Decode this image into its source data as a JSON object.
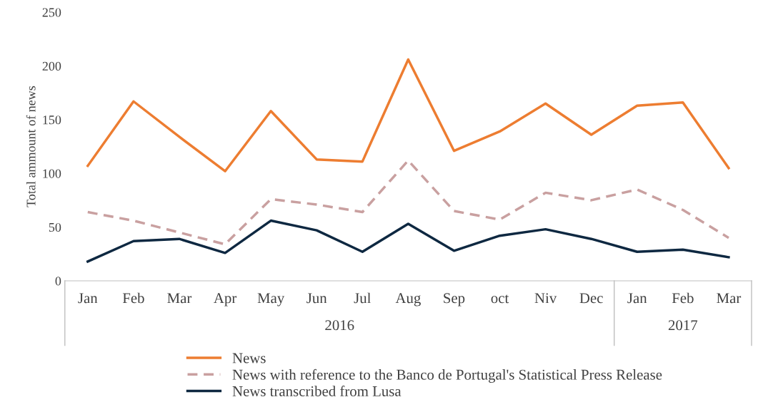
{
  "chart_data": {
    "type": "line",
    "ylabel": "Total ammount of news",
    "categories": [
      "Jan",
      "Feb",
      "Mar",
      "Apr",
      "May",
      "Jun",
      "Jul",
      "Aug",
      "Sep",
      "oct",
      "Niv",
      "Dec",
      "Jan",
      "Feb",
      "Mar"
    ],
    "series": [
      {
        "name": "News",
        "color": "#ed7d31",
        "line_style": "solid",
        "values": [
          107,
          167,
          134,
          102,
          158,
          113,
          111,
          206,
          121,
          139,
          165,
          136,
          163,
          166,
          105
        ]
      },
      {
        "name": "News with reference to the Banco de Portugal's Statistical Press Release",
        "color": "#c9a0a0",
        "line_style": "dashed",
        "values": [
          64,
          56,
          45,
          34,
          76,
          71,
          64,
          112,
          65,
          57,
          82,
          75,
          85,
          66,
          40
        ]
      },
      {
        "name": "News transcribed from Lusa",
        "color": "#0e2841",
        "line_style": "solid",
        "values": [
          18,
          37,
          39,
          26,
          56,
          47,
          27,
          53,
          28,
          42,
          48,
          39,
          27,
          29,
          22
        ]
      }
    ],
    "ylim": [
      0,
      250
    ],
    "yticks": [
      0,
      50,
      100,
      150,
      200,
      250
    ],
    "grid": false,
    "legend": "bottom",
    "marker": "none",
    "annotations": [
      "2016",
      "2017"
    ]
  }
}
